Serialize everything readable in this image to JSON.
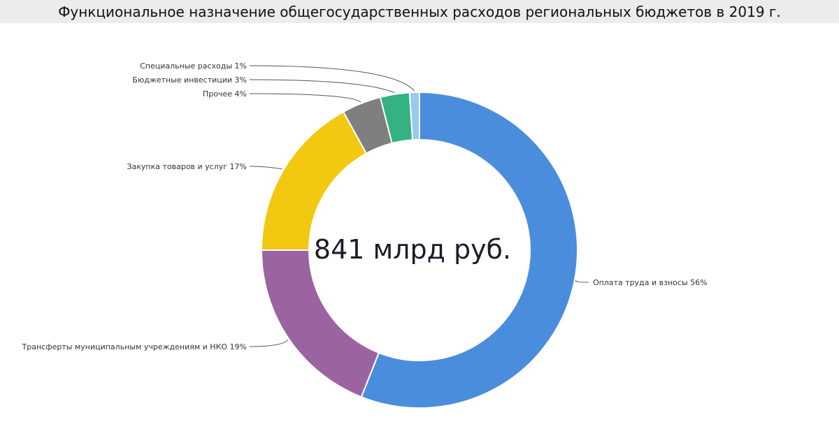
{
  "title": "Функциональное назначение общегосударственных расходов региональных бюджетов в 2019 г.",
  "chart_data": {
    "type": "pie",
    "variant": "donut",
    "center_label": "841 млрд руб.",
    "start": "top",
    "direction": "clockwise",
    "slices": [
      {
        "label": "Оплата труда и взносы 56%",
        "value": 56,
        "color": "#4a8ddc"
      },
      {
        "label": "Трансферты муниципальным учреждениям и НКО 19%",
        "value": 19,
        "color": "#9b63a1"
      },
      {
        "label": "Закупка товаров и услуг 17%",
        "value": 17,
        "color": "#f2c811"
      },
      {
        "label": "Прочее 4%",
        "value": 4,
        "color": "#7f7f7f"
      },
      {
        "label": "Бюджетные инвестиции 3%",
        "value": 3,
        "color": "#34b281"
      },
      {
        "label": "Специальные расходы 1%",
        "value": 1,
        "color": "#98c9ef"
      }
    ]
  }
}
